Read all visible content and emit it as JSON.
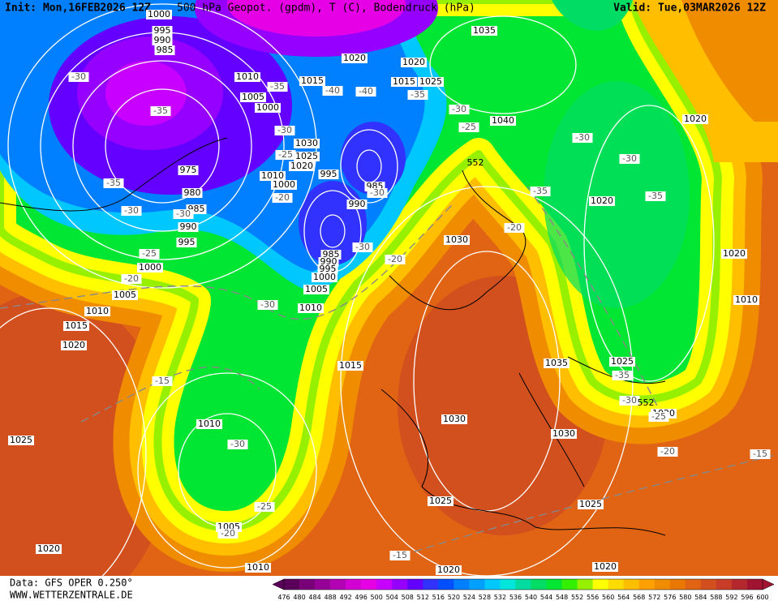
{
  "header": {
    "init": "Init: Mon,16FEB2026 12Z",
    "title": "500 hPa Geopot. (gpdm), T (C), Bodendruck (hPa)",
    "valid": "Valid: Tue,03MAR2026 12Z"
  },
  "footer": {
    "data": "Data: GFS OPER 0.250°",
    "source": "WWW.WETTERZENTRALE.DE"
  },
  "pressure_labels": [
    "1000",
    "995",
    "990",
    "985",
    "1010",
    "1005",
    "1000",
    "1015",
    "1020",
    "1020",
    "1015",
    "1025",
    "1035",
    "1040",
    "1030",
    "1025",
    "1020",
    "995",
    "1010",
    "1000",
    "975",
    "980",
    "985",
    "990",
    "995",
    "1000",
    "985",
    "990",
    "985",
    "990",
    "995",
    "1000",
    "1005",
    "1010",
    "1005",
    "1010",
    "1015",
    "1020",
    "1030",
    "1020",
    "1020",
    "1020",
    "1010",
    "1025",
    "1035",
    "1015",
    "1030",
    "1030",
    "1010",
    "1025",
    "1025",
    "1025",
    "1005",
    "1020",
    "1010",
    "1020",
    "1020",
    "1020"
  ],
  "temperature_labels": [
    "-30",
    "-35",
    "-35",
    "-30",
    "-30",
    "-25",
    "-20",
    "-35",
    "-40",
    "-30",
    "-25",
    "-20",
    "-40",
    "-35",
    "-30",
    "-25",
    "-35",
    "-30",
    "-30",
    "-35",
    "-30",
    "-30",
    "-20",
    "-20",
    "-30",
    "-15",
    "-30",
    "-25",
    "-20",
    "-15",
    "-35",
    "-30",
    "-25",
    "-20",
    "-15"
  ],
  "height_labels": [
    "552",
    "552"
  ],
  "colorbar": {
    "ticks": [
      476,
      480,
      484,
      488,
      492,
      496,
      500,
      504,
      508,
      512,
      516,
      520,
      524,
      528,
      532,
      536,
      540,
      544,
      548,
      552,
      556,
      560,
      564,
      568,
      572,
      576,
      580,
      584,
      588,
      592,
      596,
      600
    ],
    "colors": [
      "#5a005a",
      "#7a007a",
      "#960096",
      "#b400b4",
      "#d200d2",
      "#e600e6",
      "#c800ff",
      "#9600ff",
      "#6400ff",
      "#3232ff",
      "#0050ff",
      "#0080ff",
      "#00a0ff",
      "#00c8ff",
      "#00e6dc",
      "#00dca0",
      "#00dc64",
      "#00e632",
      "#32f000",
      "#96f000",
      "#ffff00",
      "#ffdc00",
      "#ffbe00",
      "#ffa000",
      "#f08c00",
      "#e87800",
      "#e06414",
      "#d2501e",
      "#c83c28",
      "#b4282d",
      "#a01432"
    ]
  }
}
